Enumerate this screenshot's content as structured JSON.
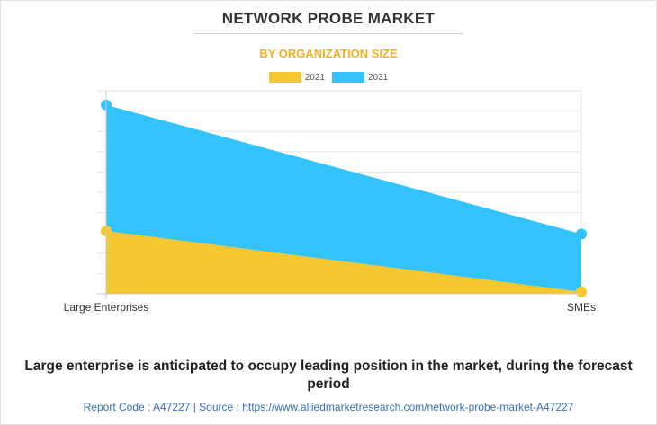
{
  "header": {
    "title": "NETWORK PROBE MARKET",
    "subtitle": "BY ORGANIZATION SIZE"
  },
  "colors": {
    "series_2021": "#f5c832",
    "series_2031": "#33c4ff",
    "subtitle": "#f0b323",
    "link": "#3a6fb5"
  },
  "chart_data": {
    "type": "area",
    "title": "NETWORK PROBE MARKET",
    "subtitle": "BY ORGANIZATION SIZE",
    "categories": [
      "Large Enterprises",
      "SMEs"
    ],
    "series": [
      {
        "name": "2021",
        "values": [
          3.1,
          0.1
        ]
      },
      {
        "name": "2031",
        "values": [
          9.3,
          2.95
        ]
      }
    ],
    "ylim": [
      0,
      10
    ],
    "grid": true,
    "legend": "top-center",
    "stacked": false
  },
  "footer": {
    "statement": "Large enterprise is anticipated to occupy leading position in the market, during the forecast period",
    "report_code": "Report Code : A47227  |  Source : https://www.alliedmarketresearch.com/network-probe-market-A47227"
  }
}
